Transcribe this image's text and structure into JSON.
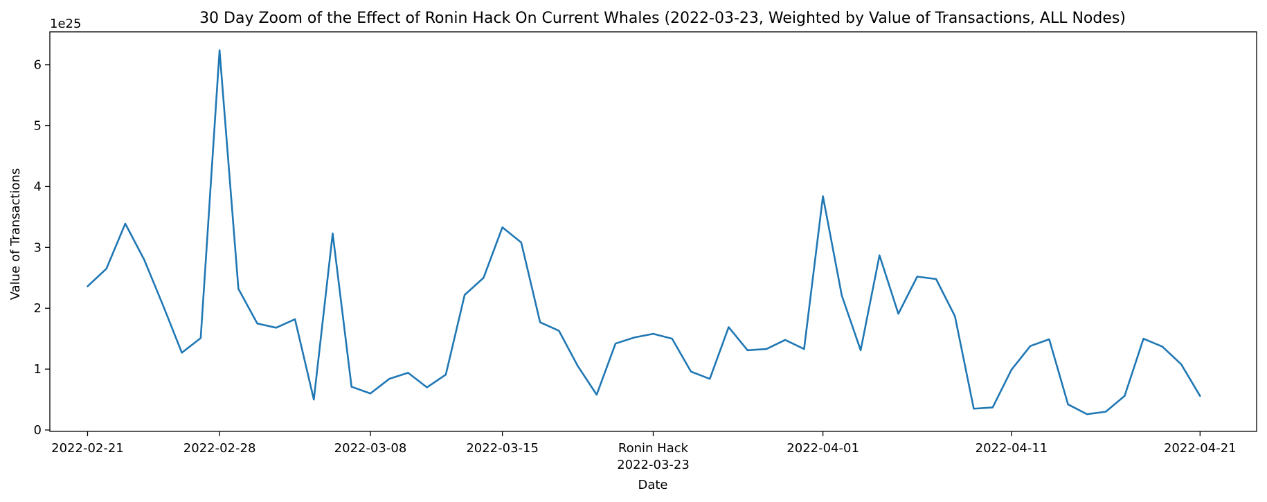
{
  "chart_data": {
    "type": "line",
    "title": "30 Day Zoom of the Effect of Ronin Hack On Current Whales (2022-03-23, Weighted by Value of Transactions, ALL Nodes)",
    "xlabel": "Date",
    "ylabel": "Value of Transactions",
    "y_offset_label": "1e25",
    "y_multiplier": 1e+25,
    "ylim": [
      0,
      6.5
    ],
    "xlim": [
      "2022-02-19",
      "2022-04-24"
    ],
    "grid": false,
    "line_color": "#1f77b4",
    "x_tick_labels": [
      {
        "date": "2022-02-21",
        "label": "2022-02-21"
      },
      {
        "date": "2022-02-28",
        "label": "2022-02-28"
      },
      {
        "date": "2022-03-08",
        "label": "2022-03-08"
      },
      {
        "date": "2022-03-15",
        "label": "2022-03-15"
      },
      {
        "date": "2022-03-23",
        "label": "Ronin Hack",
        "label2": "2022-03-23"
      },
      {
        "date": "2022-04-01",
        "label": "2022-04-01"
      },
      {
        "date": "2022-04-11",
        "label": "2022-04-11"
      },
      {
        "date": "2022-04-21",
        "label": "2022-04-21"
      }
    ],
    "y_tick_labels": [
      "0",
      "1",
      "2",
      "3",
      "4",
      "5",
      "6"
    ],
    "x": [
      "2022-02-21",
      "2022-02-22",
      "2022-02-23",
      "2022-02-24",
      "2022-02-25",
      "2022-02-26",
      "2022-02-27",
      "2022-02-28",
      "2022-03-01",
      "2022-03-02",
      "2022-03-03",
      "2022-03-04",
      "2022-03-05",
      "2022-03-06",
      "2022-03-07",
      "2022-03-08",
      "2022-03-09",
      "2022-03-10",
      "2022-03-11",
      "2022-03-12",
      "2022-03-13",
      "2022-03-14",
      "2022-03-15",
      "2022-03-16",
      "2022-03-17",
      "2022-03-18",
      "2022-03-19",
      "2022-03-20",
      "2022-03-21",
      "2022-03-22",
      "2022-03-23",
      "2022-03-24",
      "2022-03-25",
      "2022-03-26",
      "2022-03-27",
      "2022-03-28",
      "2022-03-29",
      "2022-03-30",
      "2022-03-31",
      "2022-04-01",
      "2022-04-02",
      "2022-04-03",
      "2022-04-04",
      "2022-04-05",
      "2022-04-06",
      "2022-04-07",
      "2022-04-08",
      "2022-04-09",
      "2022-04-10",
      "2022-04-11",
      "2022-04-12",
      "2022-04-13",
      "2022-04-14",
      "2022-04-15",
      "2022-04-16",
      "2022-04-17",
      "2022-04-18",
      "2022-04-19",
      "2022-04-20",
      "2022-04-21"
    ],
    "series": [
      {
        "values": [
          2.36,
          2.65,
          3.39,
          2.8,
          2.05,
          1.27,
          1.51,
          6.24,
          2.32,
          1.75,
          1.68,
          1.82,
          0.5,
          3.23,
          0.71,
          0.6,
          0.84,
          0.94,
          0.7,
          0.91,
          2.22,
          2.5,
          3.33,
          3.08,
          1.77,
          1.63,
          1.05,
          0.58,
          1.42,
          1.52,
          1.58,
          1.5,
          0.96,
          0.84,
          1.69,
          1.31,
          1.33,
          1.48,
          1.33,
          3.84,
          2.21,
          1.31,
          2.87,
          1.91,
          2.52,
          2.48,
          1.87,
          0.35,
          0.37,
          0.99,
          1.38,
          1.49,
          0.42,
          0.26,
          0.3,
          0.56,
          1.5,
          1.37,
          1.08,
          0.56
        ]
      }
    ]
  }
}
